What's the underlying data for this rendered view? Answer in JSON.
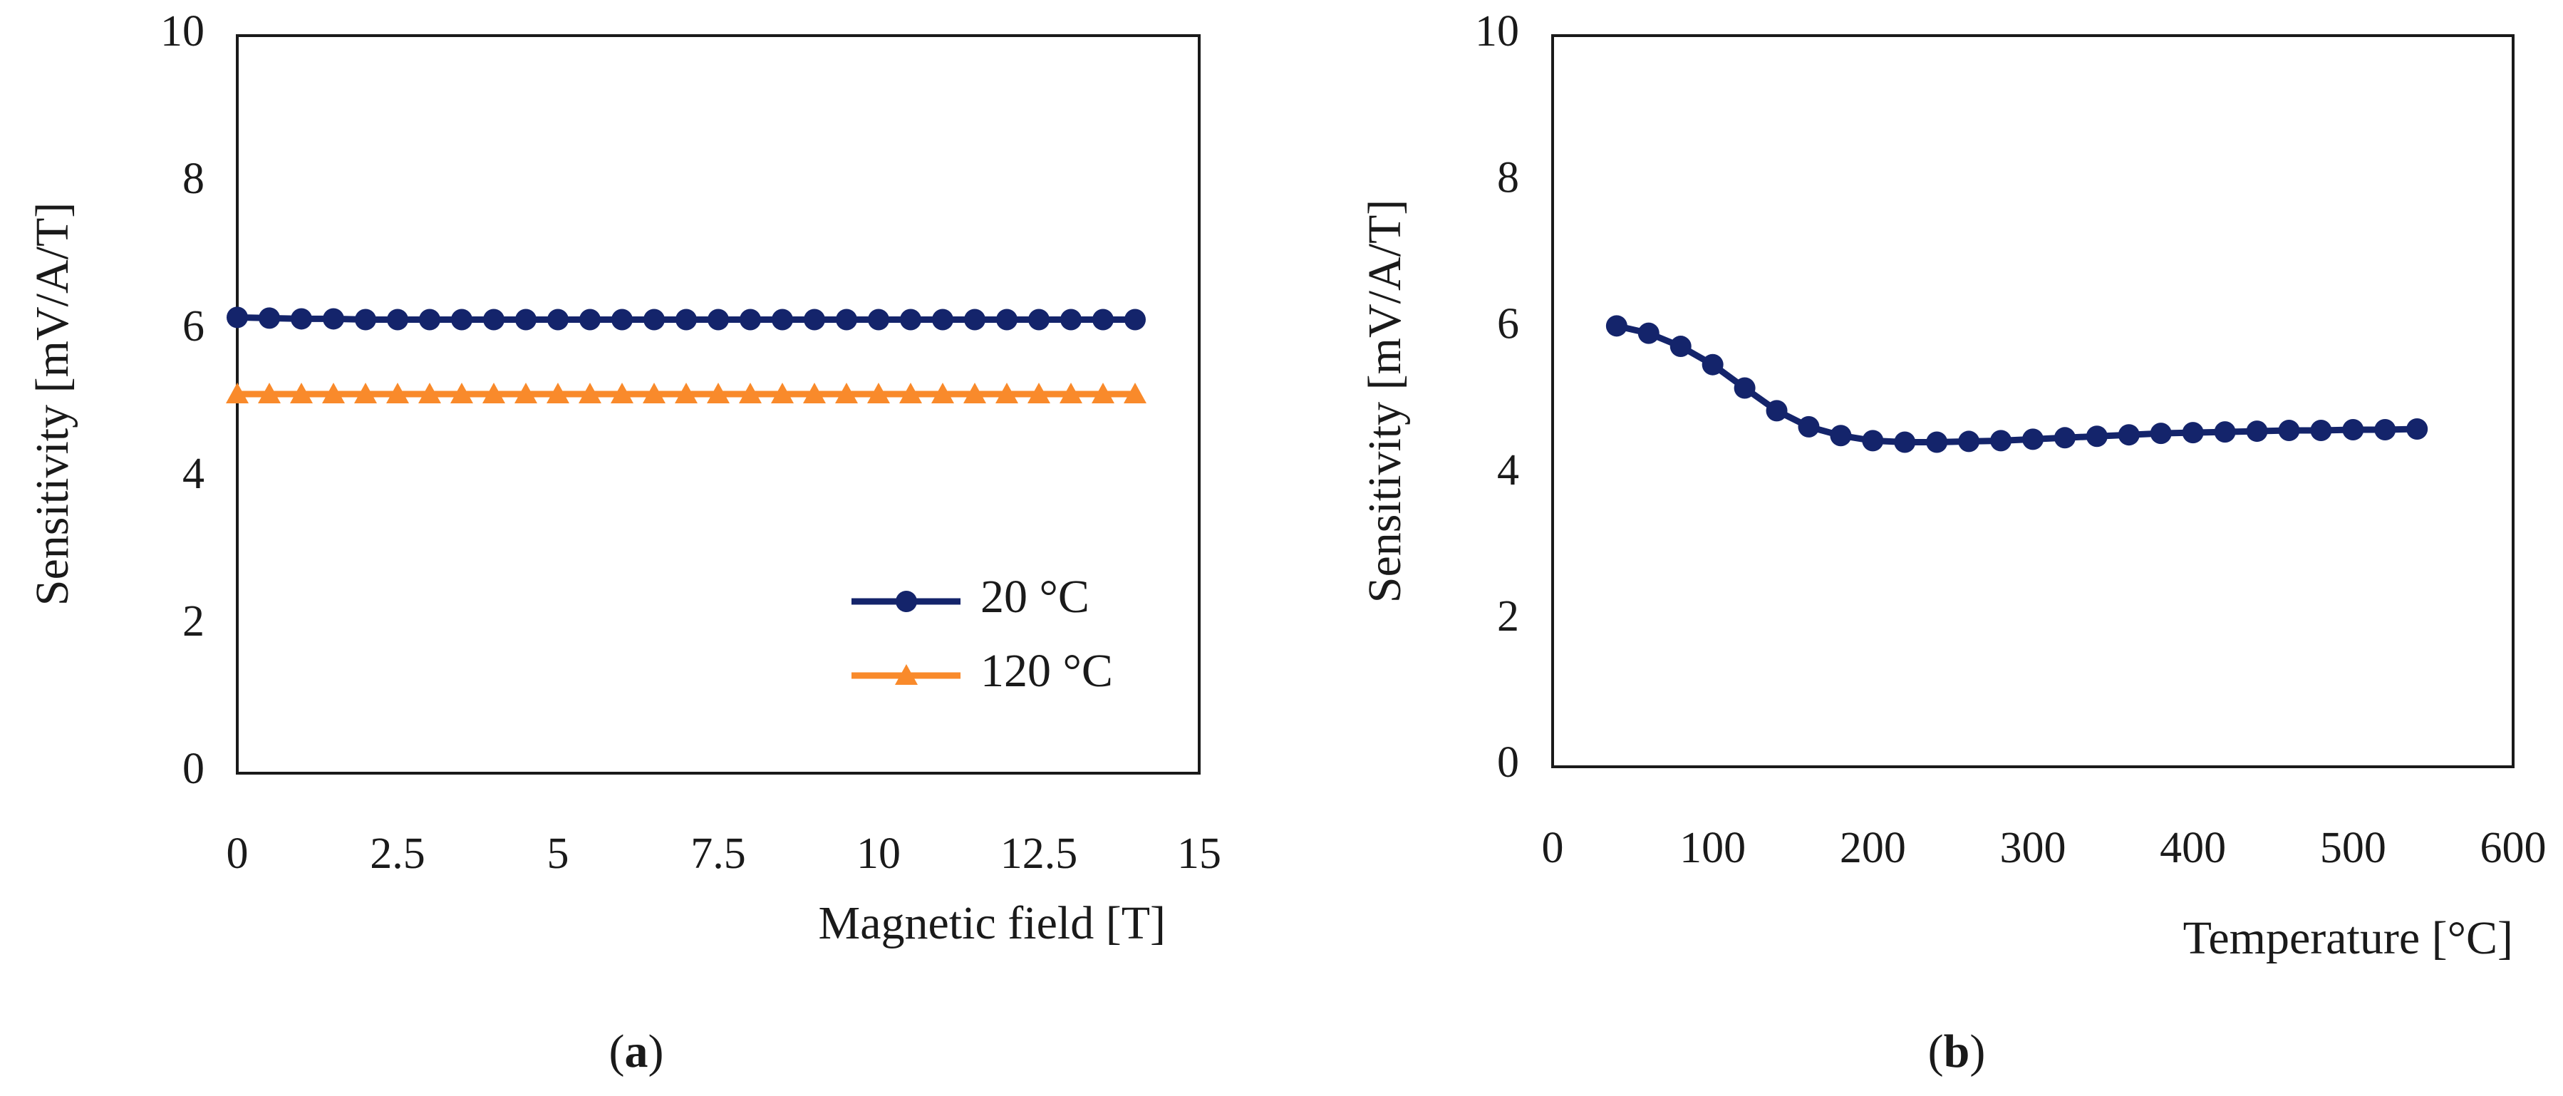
{
  "chart_data": [
    {
      "id": "a",
      "type": "line",
      "caption_open": "(",
      "caption_letter": "a",
      "caption_close": ")",
      "xlabel": "Magnetic field [T]",
      "ylabel": "Sensitivity [mV/A/T]",
      "xlim": [
        0,
        15
      ],
      "ylim": [
        0,
        10
      ],
      "xticks": [
        0,
        2.5,
        5,
        7.5,
        10,
        12.5,
        15
      ],
      "xtick_labels": [
        "0",
        "2.5",
        "5",
        "7.5",
        "10",
        "12.5",
        "15"
      ],
      "yticks": [
        0,
        2,
        4,
        6,
        8,
        10
      ],
      "ytick_labels": [
        "0",
        "2",
        "4",
        "6",
        "8",
        "10"
      ],
      "grid": false,
      "legend_position": "bottom-right",
      "series": [
        {
          "name": "20 °C",
          "color": "#14246b",
          "marker": "circle",
          "x": [
            0,
            0.5,
            1,
            1.5,
            2,
            2.5,
            3,
            3.5,
            4,
            4.5,
            5,
            5.5,
            6,
            6.5,
            7,
            7.5,
            8,
            8.5,
            9,
            9.5,
            10,
            10.5,
            11,
            11.5,
            12,
            12.5,
            13,
            13.5,
            14
          ],
          "y": [
            6.18,
            6.17,
            6.16,
            6.16,
            6.15,
            6.15,
            6.15,
            6.15,
            6.15,
            6.15,
            6.15,
            6.15,
            6.15,
            6.15,
            6.15,
            6.15,
            6.15,
            6.15,
            6.15,
            6.15,
            6.15,
            6.15,
            6.15,
            6.15,
            6.15,
            6.15,
            6.15,
            6.15,
            6.15
          ]
        },
        {
          "name": "120 °C",
          "color": "#f98a2b",
          "marker": "triangle",
          "x": [
            0,
            0.5,
            1,
            1.5,
            2,
            2.5,
            3,
            3.5,
            4,
            4.5,
            5,
            5.5,
            6,
            6.5,
            7,
            7.5,
            8,
            8.5,
            9,
            9.5,
            10,
            10.5,
            11,
            11.5,
            12,
            12.5,
            13,
            13.5,
            14
          ],
          "y": [
            5.14,
            5.14,
            5.14,
            5.14,
            5.14,
            5.14,
            5.14,
            5.14,
            5.14,
            5.14,
            5.14,
            5.14,
            5.14,
            5.14,
            5.14,
            5.14,
            5.14,
            5.14,
            5.14,
            5.14,
            5.14,
            5.14,
            5.14,
            5.14,
            5.14,
            5.14,
            5.14,
            5.14,
            5.14
          ]
        }
      ]
    },
    {
      "id": "b",
      "type": "line",
      "caption_open": "(",
      "caption_letter": "b",
      "caption_close": ")",
      "xlabel": "Temperature [°C]",
      "ylabel": "Sensitivity [mV/A/T]",
      "xlim": [
        0,
        600
      ],
      "ylim": [
        0,
        10
      ],
      "xticks": [
        0,
        100,
        200,
        300,
        400,
        500,
        600
      ],
      "xtick_labels": [
        "0",
        "100",
        "200",
        "300",
        "400",
        "500",
        "600"
      ],
      "yticks": [
        0,
        2,
        4,
        6,
        8,
        10
      ],
      "ytick_labels": [
        "0",
        "2",
        "4",
        "6",
        "8",
        "10"
      ],
      "grid": false,
      "series": [
        {
          "name": "Sensitivity",
          "color": "#14246b",
          "marker": "circle",
          "x": [
            40,
            60,
            80,
            100,
            120,
            140,
            160,
            180,
            200,
            220,
            240,
            260,
            280,
            300,
            320,
            340,
            360,
            380,
            400,
            420,
            440,
            460,
            480,
            500,
            520,
            540
          ],
          "y": [
            6.03,
            5.93,
            5.75,
            5.5,
            5.18,
            4.87,
            4.65,
            4.53,
            4.46,
            4.44,
            4.44,
            4.45,
            4.46,
            4.48,
            4.5,
            4.52,
            4.54,
            4.56,
            4.57,
            4.58,
            4.59,
            4.6,
            4.6,
            4.61,
            4.61,
            4.62
          ]
        }
      ]
    }
  ]
}
